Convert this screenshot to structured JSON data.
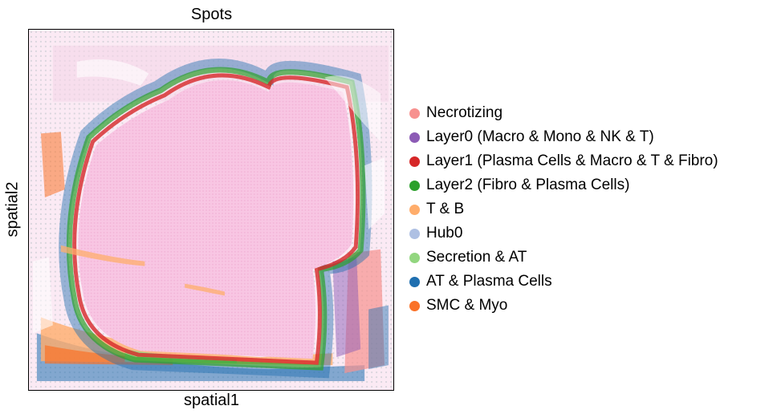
{
  "chart_data": {
    "type": "scatter",
    "title": "Spots",
    "xlabel": "spatial1",
    "ylabel": "spatial2",
    "grid": false,
    "legend_position": "right",
    "legend": [
      {
        "name": "Necrotizing",
        "color": "#f7918f"
      },
      {
        "name": "Layer0 (Macro & Mono & NK & T)",
        "color": "#8c5bb5"
      },
      {
        "name": "Layer1 (Plasma Cells & Macro & T & Fibro)",
        "color": "#d62728"
      },
      {
        "name": "Layer2 (Fibro & Plasma Cells)",
        "color": "#2ca02c"
      },
      {
        "name": "T & B",
        "color": "#ffad6b"
      },
      {
        "name": "Hub0",
        "color": "#aec0e3"
      },
      {
        "name": "Secretion & AT",
        "color": "#92d67f"
      },
      {
        "name": "AT & Plasma Cells",
        "color": "#1f6fb0"
      },
      {
        "name": "SMC & Myo",
        "color": "#fa7228"
      }
    ]
  }
}
